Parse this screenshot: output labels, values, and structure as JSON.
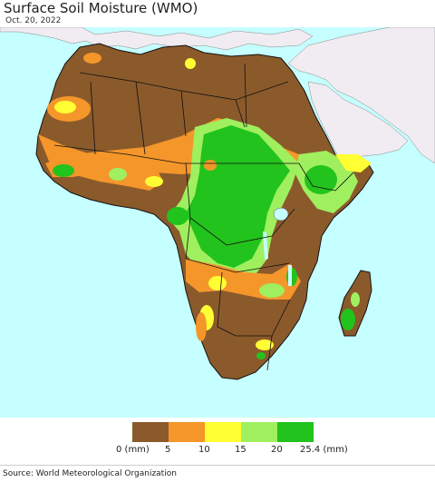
{
  "header": {
    "title": "Surface Soil Moisture (WMO)",
    "date": "Oct. 20, 2022"
  },
  "legend": {
    "unit_label": "(mm)",
    "ticks": [
      "0 (mm)",
      "5",
      "10",
      "15",
      "20",
      "25.4 (mm)"
    ],
    "colors": [
      "#8b5a2b",
      "#f5962a",
      "#ffff33",
      "#9fef5f",
      "#22c31c"
    ]
  },
  "map": {
    "ocean_color": "#c6ffff",
    "non_data_land_color": "#f0ecf2",
    "region": "Africa"
  },
  "footer": {
    "source": "Source: World Meteorological Organization"
  }
}
